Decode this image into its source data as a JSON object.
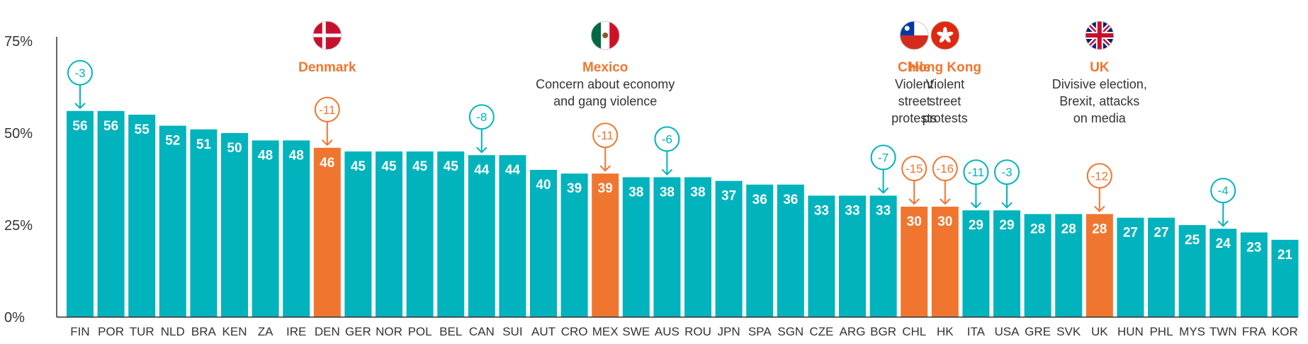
{
  "chart_data": {
    "type": "bar",
    "y_ticks": [
      "0%",
      "25%",
      "50%",
      "75%"
    ],
    "ylim": [
      0,
      75
    ],
    "categories": [
      "FIN",
      "POR",
      "TUR",
      "NLD",
      "BRA",
      "KEN",
      "ZA",
      "IRE",
      "DEN",
      "GER",
      "NOR",
      "POL",
      "BEL",
      "CAN",
      "SUI",
      "AUT",
      "CRO",
      "MEX",
      "SWE",
      "AUS",
      "ROU",
      "JPN",
      "SPA",
      "SGN",
      "CZE",
      "ARG",
      "BGR",
      "CHL",
      "HK",
      "ITA",
      "USA",
      "GRE",
      "SVK",
      "UK",
      "HUN",
      "PHL",
      "MYS",
      "TWN",
      "FRA",
      "KOR"
    ],
    "values": [
      56,
      56,
      55,
      52,
      51,
      50,
      48,
      48,
      46,
      45,
      45,
      45,
      45,
      44,
      44,
      40,
      39,
      39,
      38,
      38,
      38,
      37,
      36,
      36,
      33,
      33,
      33,
      30,
      30,
      29,
      29,
      28,
      28,
      28,
      27,
      27,
      25,
      24,
      23,
      21
    ],
    "highlighted": [
      "DEN",
      "MEX",
      "CHL",
      "HK",
      "UK"
    ],
    "changes": [
      {
        "category": "FIN",
        "label": "-3"
      },
      {
        "category": "DEN",
        "label": "-11"
      },
      {
        "category": "CAN",
        "label": "-8"
      },
      {
        "category": "MEX",
        "label": "-11"
      },
      {
        "category": "AUS",
        "label": "-6"
      },
      {
        "category": "BGR",
        "label": "-7"
      },
      {
        "category": "CHL",
        "label": "-15"
      },
      {
        "category": "HK",
        "label": "-16"
      },
      {
        "category": "ITA",
        "label": "-11"
      },
      {
        "category": "USA",
        "label": "-3"
      },
      {
        "category": "UK",
        "label": "-12"
      },
      {
        "category": "TWN",
        "label": "-4"
      }
    ],
    "annotations": [
      {
        "category": "DEN",
        "title": "Denmark",
        "lines": [],
        "flag": "denmark-flag"
      },
      {
        "category": "MEX",
        "title": "Mexico",
        "lines": [
          "Concern about economy",
          "and gang violence"
        ],
        "flag": "mexico-flag"
      },
      {
        "category": "CHL",
        "title": "Chile",
        "lines": [
          "Violent",
          "street",
          "protests"
        ],
        "flag": "chile-flag"
      },
      {
        "category": "HK",
        "title": "Hong Kong",
        "lines": [
          "Violent",
          "street",
          "protests"
        ],
        "flag": "hong-kong-flag"
      },
      {
        "category": "UK",
        "title": "UK",
        "lines": [
          "Divisive election,",
          "Brexit, attacks",
          "on media"
        ],
        "flag": "uk-flag"
      }
    ],
    "grid": false,
    "colors": {
      "bar": "#00B3BC",
      "highlight": "#F07630",
      "axis": "#333333"
    }
  }
}
